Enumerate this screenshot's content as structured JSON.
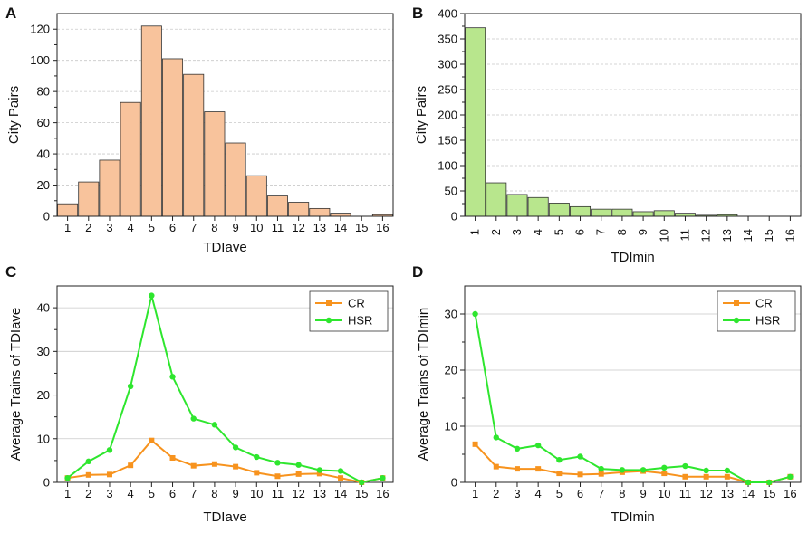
{
  "chart_data": [
    {
      "panel": "A",
      "type": "bar",
      "categories": [
        "1",
        "2",
        "3",
        "4",
        "5",
        "6",
        "7",
        "8",
        "9",
        "10",
        "11",
        "12",
        "13",
        "14",
        "15",
        "16"
      ],
      "values": [
        8,
        22,
        36,
        73,
        122,
        101,
        91,
        67,
        47,
        26,
        13,
        9,
        5,
        2,
        0,
        1
      ],
      "xlabel": "TDIave",
      "ylabel": "City Pairs",
      "ylim": [
        0,
        130
      ],
      "yticks": [
        0,
        20,
        40,
        60,
        80,
        100,
        120
      ],
      "bar_color": "#f8c39c",
      "grid": true
    },
    {
      "panel": "B",
      "type": "bar",
      "categories": [
        "1",
        "2",
        "3",
        "4",
        "5",
        "6",
        "7",
        "8",
        "9",
        "10",
        "11",
        "12",
        "13",
        "14",
        "15",
        "16"
      ],
      "values": [
        372,
        66,
        43,
        37,
        26,
        19,
        14,
        14,
        9,
        11,
        6,
        2,
        3,
        0,
        0,
        0
      ],
      "xlabel": "TDImin",
      "ylabel": "City Pairs",
      "ylim": [
        0,
        400
      ],
      "yticks": [
        0,
        50,
        100,
        150,
        200,
        250,
        300,
        350,
        400
      ],
      "bar_color": "#b8e68d",
      "grid": true
    },
    {
      "panel": "C",
      "type": "line",
      "x": [
        1,
        2,
        3,
        4,
        5,
        6,
        7,
        8,
        9,
        10,
        11,
        12,
        13,
        14,
        15,
        16
      ],
      "series": [
        {
          "name": "CR",
          "color": "#f7931e",
          "marker": "square",
          "values": [
            1.0,
            1.7,
            1.8,
            3.9,
            9.6,
            5.6,
            3.8,
            4.2,
            3.6,
            2.2,
            1.4,
            1.9,
            2.0,
            1.0,
            0.0,
            1.0
          ]
        },
        {
          "name": "HSR",
          "color": "#2ee62e",
          "marker": "circle",
          "values": [
            1.0,
            4.8,
            7.4,
            22.0,
            42.8,
            24.2,
            14.6,
            13.2,
            8.0,
            5.8,
            4.5,
            4.0,
            2.8,
            2.6,
            0.0,
            1.0
          ]
        }
      ],
      "xlabel": "TDIave",
      "ylabel": "Average Trains of TDIave",
      "ylim": [
        0,
        45
      ],
      "yticks": [
        0,
        10,
        20,
        30,
        40
      ],
      "legend": "top-right",
      "grid": true
    },
    {
      "panel": "D",
      "type": "line",
      "x": [
        1,
        2,
        3,
        4,
        5,
        6,
        7,
        8,
        9,
        10,
        11,
        12,
        13,
        14,
        15,
        16
      ],
      "series": [
        {
          "name": "CR",
          "color": "#f7931e",
          "marker": "square",
          "values": [
            6.8,
            2.8,
            2.4,
            2.4,
            1.6,
            1.4,
            1.5,
            1.8,
            2.0,
            1.6,
            1.0,
            1.0,
            1.0,
            0.0,
            0.0,
            1.0
          ]
        },
        {
          "name": "HSR",
          "color": "#2ee62e",
          "marker": "circle",
          "values": [
            30.0,
            8.0,
            6.0,
            6.6,
            4.0,
            4.6,
            2.4,
            2.2,
            2.2,
            2.6,
            2.9,
            2.1,
            2.1,
            0.0,
            0.0,
            1.0
          ]
        }
      ],
      "xlabel": "TDImin",
      "ylabel": "Average Trains of TDImin",
      "ylim": [
        0,
        35
      ],
      "yticks": [
        0,
        10,
        20,
        30
      ],
      "legend": "top-right",
      "grid": true
    }
  ]
}
